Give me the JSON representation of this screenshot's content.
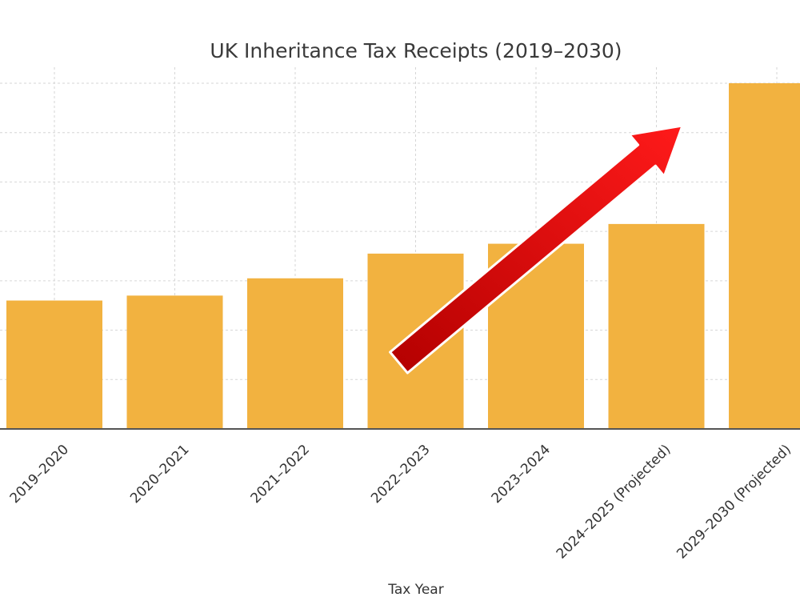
{
  "chart_data": {
    "type": "bar",
    "title": "UK Inheritance Tax Receipts (2019–2030)",
    "xlabel": "Tax Year",
    "ylabel": "",
    "categories": [
      "2019–2020",
      "2020–2021",
      "2021–2022",
      "2022–2023",
      "2023–2024",
      "2024–2025 (Projected)",
      "2029–2030 (Projected)"
    ],
    "values": [
      5.2,
      5.4,
      6.1,
      7.1,
      7.5,
      8.3,
      14.0
    ],
    "ylim": [
      0,
      14
    ],
    "grid": true,
    "bar_color": "#F2B240",
    "trend_arrow": {
      "from_category": 3,
      "to_category": 6,
      "color": "#DD0000"
    }
  }
}
